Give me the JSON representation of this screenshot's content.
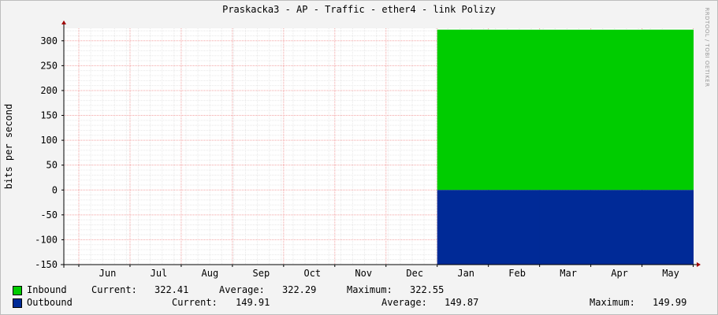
{
  "title": "Praskacka3 - AP - Traffic - ether4 - link Polizy",
  "ylabel": "bits per second",
  "watermark": "RRDTOOL / TOBI OETIKER",
  "colors": {
    "inbound": "#00cc00",
    "outbound": "#002a97",
    "grid_minor": "#e8e8e8",
    "grid_major": "#f3a3a3",
    "axis": "#000000",
    "plot_bg": "#ffffff"
  },
  "chart_data": {
    "type": "area",
    "title": "Praskacka3 - AP - Traffic - ether4 - link Polizy",
    "xlabel": "",
    "ylabel": "bits per second",
    "ylim": [
      -150,
      325
    ],
    "yticks": [
      -150,
      -100,
      -50,
      0,
      50,
      100,
      150,
      200,
      250,
      300
    ],
    "categories": [
      "Jun",
      "Jul",
      "Aug",
      "Sep",
      "Oct",
      "Nov",
      "Dec",
      "Jan",
      "Feb",
      "Mar",
      "Apr",
      "May"
    ],
    "grid": true,
    "series": [
      {
        "name": "Inbound",
        "color": "#00cc00",
        "values": [
          null,
          null,
          null,
          null,
          null,
          null,
          null,
          322.4,
          322.3,
          322.3,
          322.3,
          322.4
        ]
      },
      {
        "name": "Outbound",
        "color": "#002a97",
        "values": [
          null,
          null,
          null,
          null,
          null,
          null,
          null,
          -149.9,
          -149.9,
          -149.9,
          -149.9,
          -149.9
        ]
      }
    ]
  },
  "legend": [
    {
      "name": "Inbound",
      "current_label": "Current:",
      "current": "322.41",
      "average_label": "Average:",
      "average": "322.29",
      "maximum_label": "Maximum:",
      "maximum": "322.55"
    },
    {
      "name": "Outbound",
      "current_label": "Current:",
      "current": "149.91",
      "average_label": "Average:",
      "average": "149.87",
      "maximum_label": "Maximum:",
      "maximum": "149.99"
    }
  ]
}
